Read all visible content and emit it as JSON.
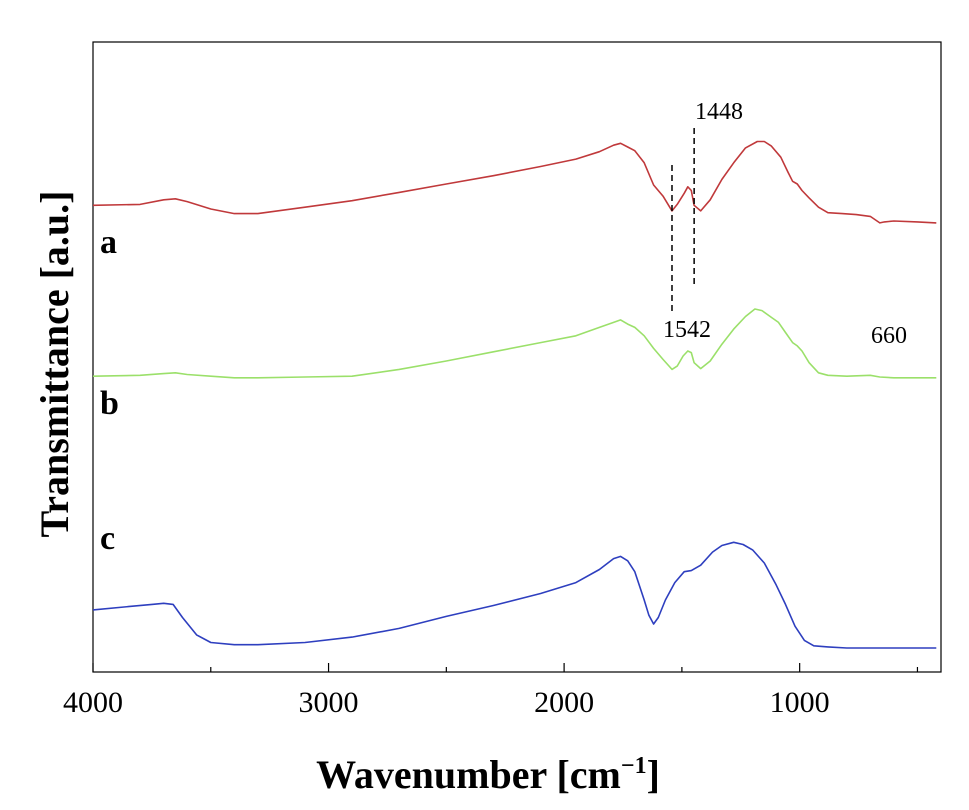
{
  "chart_data": {
    "type": "line",
    "xlabel": "Wavenumber [cm",
    "xlabel_sup": "−1",
    "xlabel_close": "]",
    "ylabel": "Transmittance [a.u.]",
    "xlim": [
      4000,
      400
    ],
    "ylim": [
      0,
      1
    ],
    "x_ticks": [
      4000,
      3000,
      2000,
      1000
    ],
    "x_tick_labels": [
      "4000",
      "3000",
      "2000",
      "1000"
    ],
    "grid": false,
    "legend": "none",
    "series": [
      {
        "name": "a",
        "color": "#c0393b",
        "points": [
          [
            4000,
            0.62
          ],
          [
            3800,
            0.625
          ],
          [
            3700,
            0.65
          ],
          [
            3650,
            0.655
          ],
          [
            3600,
            0.64
          ],
          [
            3500,
            0.6
          ],
          [
            3400,
            0.575
          ],
          [
            3300,
            0.575
          ],
          [
            3100,
            0.61
          ],
          [
            2900,
            0.645
          ],
          [
            2700,
            0.69
          ],
          [
            2500,
            0.735
          ],
          [
            2300,
            0.78
          ],
          [
            2100,
            0.83
          ],
          [
            1950,
            0.87
          ],
          [
            1850,
            0.91
          ],
          [
            1790,
            0.945
          ],
          [
            1760,
            0.955
          ],
          [
            1730,
            0.935
          ],
          [
            1700,
            0.915
          ],
          [
            1660,
            0.85
          ],
          [
            1620,
            0.73
          ],
          [
            1580,
            0.67
          ],
          [
            1542,
            0.59
          ],
          [
            1520,
            0.625
          ],
          [
            1490,
            0.685
          ],
          [
            1475,
            0.72
          ],
          [
            1460,
            0.7
          ],
          [
            1448,
            0.62
          ],
          [
            1420,
            0.59
          ],
          [
            1380,
            0.65
          ],
          [
            1330,
            0.76
          ],
          [
            1280,
            0.85
          ],
          [
            1230,
            0.93
          ],
          [
            1180,
            0.965
          ],
          [
            1150,
            0.965
          ],
          [
            1120,
            0.94
          ],
          [
            1080,
            0.88
          ],
          [
            1050,
            0.8
          ],
          [
            1030,
            0.75
          ],
          [
            1010,
            0.735
          ],
          [
            990,
            0.7
          ],
          [
            960,
            0.66
          ],
          [
            920,
            0.61
          ],
          [
            880,
            0.58
          ],
          [
            820,
            0.575
          ],
          [
            760,
            0.57
          ],
          [
            700,
            0.56
          ],
          [
            660,
            0.525
          ],
          [
            640,
            0.53
          ],
          [
            600,
            0.535
          ],
          [
            500,
            0.53
          ],
          [
            420,
            0.525
          ]
        ]
      },
      {
        "name": "b",
        "color": "#9be06a",
        "points": [
          [
            4000,
            0.38
          ],
          [
            3800,
            0.385
          ],
          [
            3700,
            0.395
          ],
          [
            3650,
            0.4
          ],
          [
            3600,
            0.39
          ],
          [
            3500,
            0.38
          ],
          [
            3400,
            0.37
          ],
          [
            3300,
            0.37
          ],
          [
            3100,
            0.375
          ],
          [
            2900,
            0.38
          ],
          [
            2700,
            0.42
          ],
          [
            2500,
            0.47
          ],
          [
            2300,
            0.525
          ],
          [
            2100,
            0.58
          ],
          [
            1950,
            0.62
          ],
          [
            1850,
            0.67
          ],
          [
            1790,
            0.7
          ],
          [
            1760,
            0.715
          ],
          [
            1730,
            0.69
          ],
          [
            1700,
            0.67
          ],
          [
            1660,
            0.62
          ],
          [
            1620,
            0.545
          ],
          [
            1580,
            0.48
          ],
          [
            1542,
            0.42
          ],
          [
            1520,
            0.44
          ],
          [
            1495,
            0.5
          ],
          [
            1475,
            0.53
          ],
          [
            1460,
            0.52
          ],
          [
            1448,
            0.46
          ],
          [
            1420,
            0.425
          ],
          [
            1380,
            0.47
          ],
          [
            1330,
            0.57
          ],
          [
            1280,
            0.66
          ],
          [
            1230,
            0.735
          ],
          [
            1190,
            0.78
          ],
          [
            1160,
            0.77
          ],
          [
            1120,
            0.73
          ],
          [
            1090,
            0.7
          ],
          [
            1060,
            0.64
          ],
          [
            1030,
            0.58
          ],
          [
            1010,
            0.56
          ],
          [
            990,
            0.53
          ],
          [
            960,
            0.46
          ],
          [
            920,
            0.4
          ],
          [
            880,
            0.385
          ],
          [
            800,
            0.38
          ],
          [
            700,
            0.385
          ],
          [
            660,
            0.375
          ],
          [
            600,
            0.37
          ],
          [
            500,
            0.37
          ],
          [
            420,
            0.37
          ]
        ]
      },
      {
        "name": "c",
        "color": "#2e3fbf",
        "points": [
          [
            4000,
            0.175
          ],
          [
            3850,
            0.19
          ],
          [
            3750,
            0.2
          ],
          [
            3700,
            0.205
          ],
          [
            3660,
            0.2
          ],
          [
            3620,
            0.14
          ],
          [
            3560,
            0.06
          ],
          [
            3500,
            0.025
          ],
          [
            3400,
            0.015
          ],
          [
            3300,
            0.015
          ],
          [
            3100,
            0.025
          ],
          [
            2900,
            0.05
          ],
          [
            2700,
            0.09
          ],
          [
            2500,
            0.145
          ],
          [
            2300,
            0.195
          ],
          [
            2100,
            0.25
          ],
          [
            1950,
            0.3
          ],
          [
            1850,
            0.36
          ],
          [
            1790,
            0.41
          ],
          [
            1760,
            0.42
          ],
          [
            1730,
            0.4
          ],
          [
            1700,
            0.35
          ],
          [
            1660,
            0.22
          ],
          [
            1640,
            0.15
          ],
          [
            1620,
            0.11
          ],
          [
            1600,
            0.14
          ],
          [
            1570,
            0.22
          ],
          [
            1530,
            0.3
          ],
          [
            1490,
            0.35
          ],
          [
            1460,
            0.355
          ],
          [
            1420,
            0.38
          ],
          [
            1370,
            0.44
          ],
          [
            1330,
            0.47
          ],
          [
            1280,
            0.485
          ],
          [
            1240,
            0.475
          ],
          [
            1200,
            0.45
          ],
          [
            1150,
            0.39
          ],
          [
            1100,
            0.29
          ],
          [
            1060,
            0.2
          ],
          [
            1020,
            0.1
          ],
          [
            980,
            0.035
          ],
          [
            940,
            0.01
          ],
          [
            880,
            0.005
          ],
          [
            800,
            0.0
          ],
          [
            700,
            0.0
          ],
          [
            600,
            0.0
          ],
          [
            500,
            0.0
          ],
          [
            420,
            0.0
          ]
        ]
      }
    ],
    "annotations": [
      {
        "text": "1448",
        "x": 1448
      },
      {
        "text": "1542",
        "x": 1542
      },
      {
        "text": "660",
        "x": 660
      }
    ]
  }
}
